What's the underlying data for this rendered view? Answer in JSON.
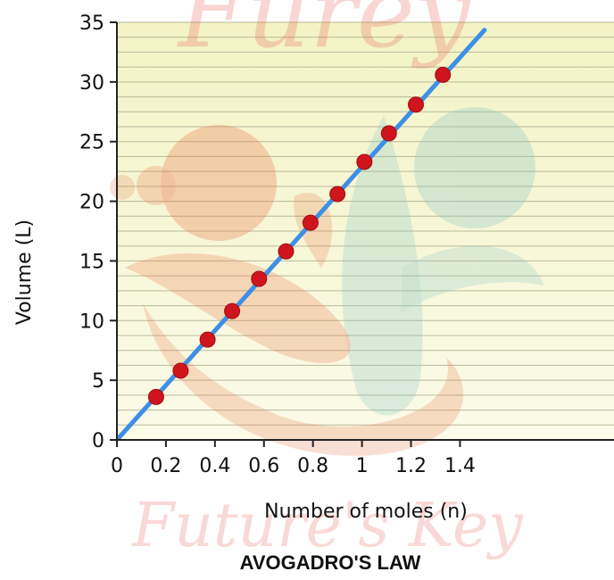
{
  "chart_data": {
    "type": "scatter",
    "title": "AVOGADRO'S LAW",
    "xlabel": "Number of moles (n)",
    "ylabel": "Volume (L)",
    "xlim": [
      0,
      1.45
    ],
    "ylim": [
      0,
      35
    ],
    "x_ticks": [
      "0",
      "0.2",
      "0.4",
      "0.6",
      "0.8",
      "1",
      "1.2",
      "1.4"
    ],
    "y_ticks": [
      "0",
      "5",
      "10",
      "15",
      "20",
      "25",
      "30",
      "35"
    ],
    "points": [
      {
        "x": 0.16,
        "y": 3.6
      },
      {
        "x": 0.26,
        "y": 5.8
      },
      {
        "x": 0.37,
        "y": 8.4
      },
      {
        "x": 0.47,
        "y": 10.8
      },
      {
        "x": 0.58,
        "y": 13.5
      },
      {
        "x": 0.69,
        "y": 15.8
      },
      {
        "x": 0.79,
        "y": 18.2
      },
      {
        "x": 0.9,
        "y": 20.6
      },
      {
        "x": 1.01,
        "y": 23.3
      },
      {
        "x": 1.11,
        "y": 25.7
      },
      {
        "x": 1.22,
        "y": 28.1
      },
      {
        "x": 1.33,
        "y": 30.6
      }
    ],
    "fit_line": {
      "slope": 22.9,
      "intercept": 0
    },
    "grid": "horizontal",
    "colors": {
      "points": "#d0141e",
      "line": "#3d8fe6",
      "plot_background_top": "#f3f3c6",
      "plot_background_bottom": "#fbfbe8",
      "grid": "#b9b99a"
    }
  },
  "watermark": {
    "top_text": "Furey",
    "bottom_text": "Future's Key"
  }
}
